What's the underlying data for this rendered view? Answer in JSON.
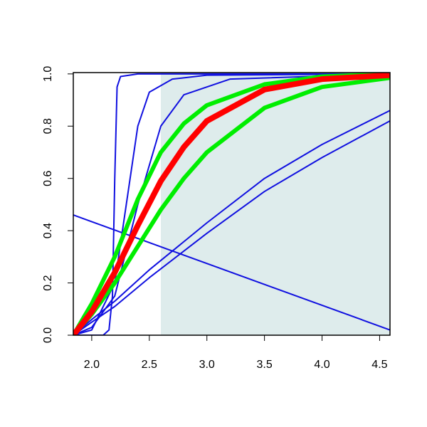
{
  "chart_data": {
    "type": "line",
    "xlim": [
      1.84,
      4.59
    ],
    "ylim": [
      0,
      1.005
    ],
    "xticks": [
      {
        "value": 2.0,
        "label": "2.0"
      },
      {
        "value": 2.5,
        "label": "2.5"
      },
      {
        "value": 3.0,
        "label": "3.0"
      },
      {
        "value": 3.5,
        "label": "3.5"
      },
      {
        "value": 4.0,
        "label": "4.0"
      },
      {
        "value": 4.5,
        "label": "4.5"
      }
    ],
    "yticks": [
      {
        "value": 0,
        "label": "0.0"
      },
      {
        "value": 0.2,
        "label": "0.2"
      },
      {
        "value": 0.4,
        "label": "0.4"
      },
      {
        "value": 0.6,
        "label": "0.6"
      },
      {
        "value": 0.8,
        "label": "0.8"
      },
      {
        "value": 1,
        "label": "1.0"
      }
    ],
    "shade_from_x": 2.6,
    "shade_color": "#deecec",
    "series": [
      {
        "color": "#1010e0",
        "width": 2,
        "x": [
          1.84,
          2.1,
          2.15,
          2.18,
          2.2,
          2.22,
          2.25,
          2.4,
          4.59
        ],
        "values": [
          0,
          0,
          0.02,
          0.15,
          0.6,
          0.95,
          0.99,
          1,
          1
        ]
      },
      {
        "color": "#1010e0",
        "width": 2,
        "x": [
          1.84,
          4.59
        ],
        "values": [
          0.46,
          0.02
        ]
      },
      {
        "color": "#1010e0",
        "width": 2,
        "x": [
          1.84,
          2.0,
          2.2,
          2.3,
          2.4,
          2.5,
          2.7,
          3.0,
          4.59
        ],
        "values": [
          0,
          0.02,
          0.2,
          0.5,
          0.8,
          0.93,
          0.98,
          0.995,
          1
        ]
      },
      {
        "color": "#1010e0",
        "width": 2,
        "x": [
          1.84,
          2.0,
          2.2,
          2.4,
          2.6,
          2.8,
          3.2,
          4.59
        ],
        "values": [
          0,
          0.03,
          0.15,
          0.5,
          0.8,
          0.92,
          0.98,
          1
        ]
      },
      {
        "color": "#1010e0",
        "width": 2,
        "x": [
          1.84,
          2.0,
          2.2,
          2.5,
          3.0,
          3.5,
          4.0,
          4.59
        ],
        "values": [
          0,
          0.06,
          0.13,
          0.25,
          0.43,
          0.6,
          0.73,
          0.86
        ]
      },
      {
        "color": "#1010e0",
        "width": 2,
        "x": [
          1.84,
          2.0,
          2.2,
          2.5,
          3.0,
          3.5,
          4.0,
          4.59
        ],
        "values": [
          0,
          0.05,
          0.11,
          0.22,
          0.39,
          0.55,
          0.68,
          0.82
        ]
      },
      {
        "color": "#00ee00",
        "width": 6,
        "x": [
          1.84,
          2.0,
          2.2,
          2.4,
          2.6,
          2.8,
          3.0,
          3.5,
          4.0,
          4.59
        ],
        "values": [
          0,
          0.12,
          0.3,
          0.52,
          0.7,
          0.81,
          0.88,
          0.96,
          0.99,
          1
        ]
      },
      {
        "color": "#00ee00",
        "width": 6,
        "x": [
          1.84,
          2.0,
          2.2,
          2.4,
          2.6,
          2.8,
          3.0,
          3.5,
          4.0,
          4.59
        ],
        "values": [
          0,
          0.08,
          0.2,
          0.34,
          0.48,
          0.6,
          0.7,
          0.87,
          0.95,
          0.985
        ]
      },
      {
        "color": "#ff0000",
        "width": 8,
        "x": [
          1.84,
          2.0,
          2.2,
          2.4,
          2.6,
          2.8,
          3.0,
          3.5,
          4.0,
          4.59
        ],
        "values": [
          0,
          0.09,
          0.24,
          0.42,
          0.59,
          0.72,
          0.82,
          0.94,
          0.98,
          0.995
        ]
      }
    ]
  }
}
